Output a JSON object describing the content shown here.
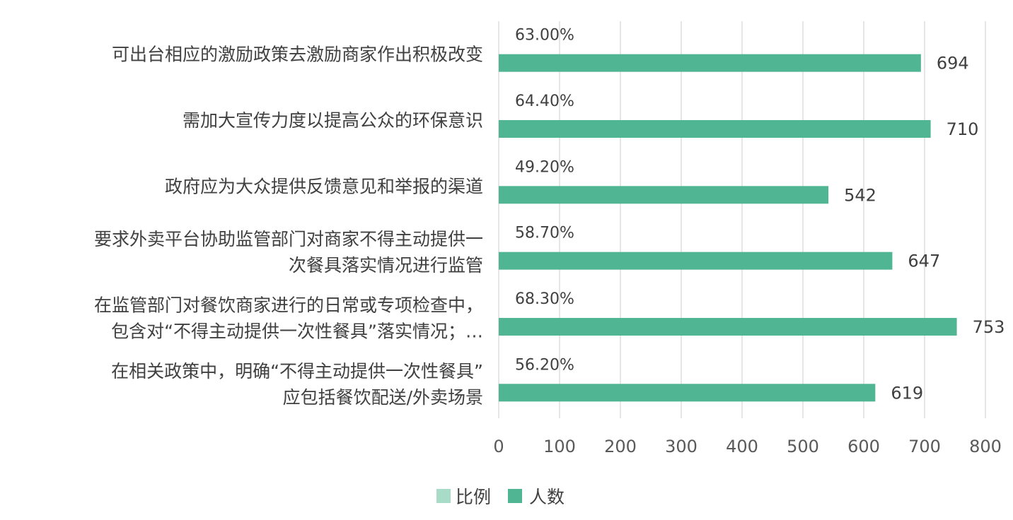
{
  "chart_data": {
    "type": "bar",
    "orientation": "horizontal",
    "categories": [
      [
        "可出台相应的激励政策去激励商家作出积极改变"
      ],
      [
        "需加大宣传力度以提高公众的环保意识"
      ],
      [
        "政府应为大众提供反馈意见和举报的渠道"
      ],
      [
        "要求外卖平台协助监管部门对商家不得主动提供一",
        "次餐具落实情况进行监管"
      ],
      [
        "在监管部门对餐饮商家进行的日常或专项检查中，",
        "包含对“不得主动提供一次性餐具”落实情况；…"
      ],
      [
        "在相关政策中，明确“不得主动提供一次性餐具”",
        "应包括餐饮配送/外卖场景"
      ]
    ],
    "series": [
      {
        "name": "比例",
        "values": [
          "63.00%",
          "64.40%",
          "49.20%",
          "58.70%",
          "68.30%",
          "56.20%"
        ],
        "color": "#a8dcc8"
      },
      {
        "name": "人数",
        "values": [
          694,
          710,
          542,
          647,
          753,
          619
        ],
        "color": "#4fb592"
      }
    ],
    "xlim": [
      0,
      800
    ],
    "xticks": [
      0,
      100,
      200,
      300,
      400,
      500,
      600,
      700,
      800
    ],
    "grid": "vertical",
    "legend": "bottom",
    "title": "",
    "xlabel": "",
    "ylabel": ""
  }
}
